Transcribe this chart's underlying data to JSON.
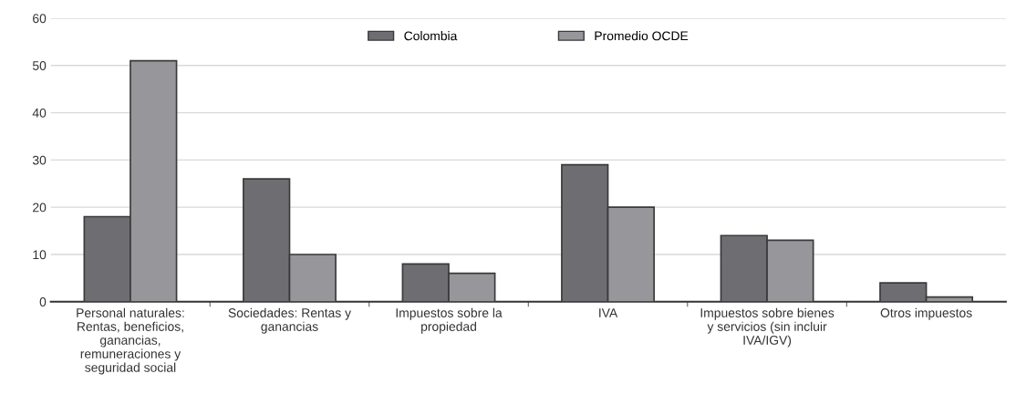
{
  "chart_data": {
    "type": "bar",
    "categories": [
      "Personal naturales:\nRentas, beneficios,\nganancias,\nremuneraciones y\nseguridad social",
      "Sociedades: Rentas y\nganancias",
      "Impuestos sobre la\npropiedad",
      "IVA",
      "Impuestos sobre bienes\ny servicios (sin incluir\nIVA/IGV)",
      "Otros impuestos"
    ],
    "series": [
      {
        "name": "Colombia",
        "color": "#6e6e72",
        "values": [
          18,
          26,
          8,
          29,
          14,
          4
        ]
      },
      {
        "name": "Promedio OCDE",
        "color": "#97979b",
        "values": [
          51,
          10,
          6,
          20,
          13,
          1
        ]
      }
    ],
    "ylim": [
      0,
      60
    ],
    "yticks": [
      0,
      10,
      20,
      30,
      40,
      50,
      60
    ],
    "grid": "y",
    "legend": "top"
  }
}
